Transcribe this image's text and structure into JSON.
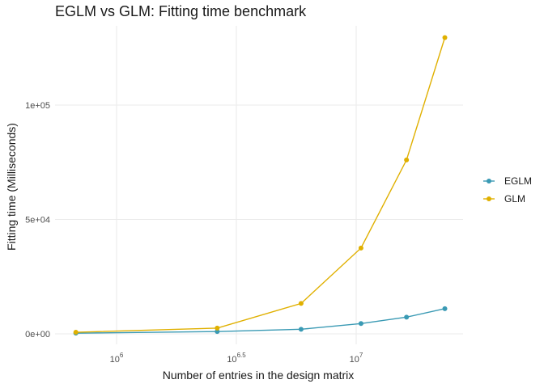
{
  "chart_data": {
    "type": "line",
    "title": "EGLM vs GLM: Fitting time benchmark",
    "xlabel": "Number of entries in the design matrix",
    "ylabel": "Fitting time (Milliseconds)",
    "x_scale": "log10",
    "xlim_log10": [
      5.85,
      7.45
    ],
    "ylim": [
      -1000,
      132000
    ],
    "x_ticks": [
      {
        "log10": 6.0,
        "base": "10",
        "exp": "6"
      },
      {
        "log10": 6.5,
        "base": "10",
        "exp": "6.5"
      },
      {
        "log10": 7.0,
        "base": "10",
        "exp": "7"
      }
    ],
    "y_ticks": [
      {
        "value": 0,
        "label": "0e+00"
      },
      {
        "value": 50000,
        "label": "5e+04"
      },
      {
        "value": 100000,
        "label": "1e+05"
      }
    ],
    "grid": true,
    "legend_position": "right",
    "series": [
      {
        "name": "EGLM",
        "color": "#3a9ab4",
        "x_log10": [
          5.83,
          6.42,
          6.77,
          7.02,
          7.21,
          7.37
        ],
        "y": [
          300,
          1000,
          2000,
          4500,
          7300,
          11000
        ]
      },
      {
        "name": "GLM",
        "color": "#e0b000",
        "x_log10": [
          5.83,
          6.42,
          6.77,
          7.02,
          7.21,
          7.37
        ],
        "y": [
          700,
          2500,
          13300,
          37500,
          76000,
          129500
        ]
      }
    ]
  }
}
